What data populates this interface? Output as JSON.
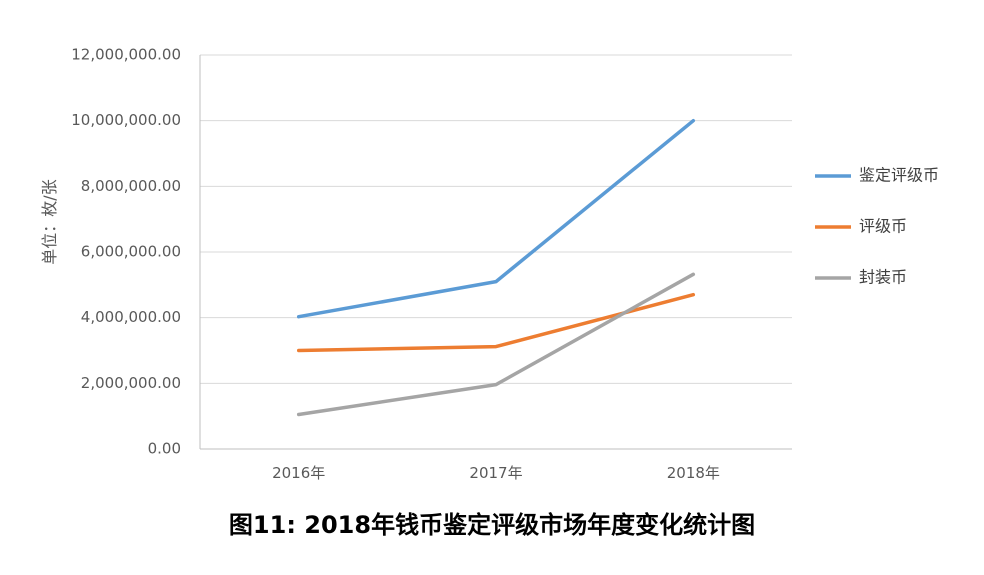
{
  "caption": "图11: 2018年钱币鉴定评级市场年度变化统计图",
  "chart_data": {
    "type": "line",
    "title": "图11: 2018年钱币鉴定评级市场年度变化统计图",
    "xlabel": "",
    "ylabel": "单位：枚/张",
    "categories": [
      "2016年",
      "2017年",
      "2018年"
    ],
    "ylim": [
      0,
      12000000
    ],
    "yticks": [
      "0.00",
      "2,000,000.00",
      "4,000,000.00",
      "6,000,000.00",
      "8,000,000.00",
      "10,000,000.00",
      "12,000,000.00"
    ],
    "grid": true,
    "legend": "right",
    "series": [
      {
        "name": "鉴定评级币",
        "color": "#5B9BD5",
        "values": [
          4030000,
          5100000,
          10000000
        ]
      },
      {
        "name": "评级币",
        "color": "#ED7D31",
        "values": [
          3000000,
          3120000,
          4700000
        ]
      },
      {
        "name": "封装币",
        "color": "#A5A5A5",
        "values": [
          1050000,
          1960000,
          5320000
        ]
      }
    ]
  }
}
